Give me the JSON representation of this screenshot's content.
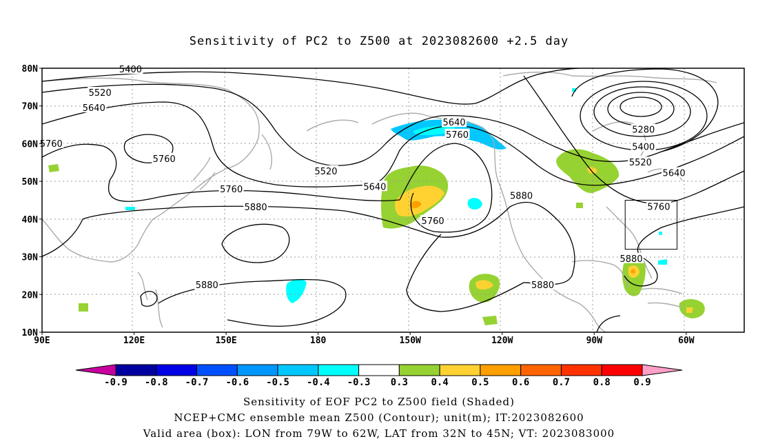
{
  "title": "Sensitivity of PC2 to Z500 at 2023082600 +2.5 day",
  "axes": {
    "lat_labels": [
      "80N",
      "70N",
      "60N",
      "50N",
      "40N",
      "30N",
      "20N",
      "10N"
    ],
    "lon_labels": [
      "90E",
      "120E",
      "150E",
      "180",
      "150W",
      "120W",
      "90W",
      "60W"
    ]
  },
  "contour_labels": [
    {
      "text": "5400",
      "lon": 119,
      "lat": 79.8
    },
    {
      "text": "5520",
      "lon": 109,
      "lat": 73.6
    },
    {
      "text": "5640",
      "lon": 107,
      "lat": 69.6
    },
    {
      "text": "5760",
      "lon": 93,
      "lat": 60.1
    },
    {
      "text": "5760",
      "lon": 130,
      "lat": 56.1
    },
    {
      "text": "5520",
      "lon": 183,
      "lat": 52.8
    },
    {
      "text": "5640",
      "lon": 199,
      "lat": 48.7
    },
    {
      "text": "5760",
      "lon": 152,
      "lat": 48.0
    },
    {
      "text": "5880",
      "lon": 160,
      "lat": 43.3
    },
    {
      "text": "5880",
      "lon": 144,
      "lat": 22.6
    },
    {
      "text": "5640",
      "lon": 225,
      "lat": 65.7
    },
    {
      "text": "5760",
      "lon": 226,
      "lat": 62.5
    },
    {
      "text": "5760",
      "lon": 218,
      "lat": 39.6
    },
    {
      "text": "5880",
      "lon": 247,
      "lat": 46.3
    },
    {
      "text": "5880",
      "lon": 254,
      "lat": 22.6
    },
    {
      "text": "5280",
      "lon": 287,
      "lat": 63.8
    },
    {
      "text": "5400",
      "lon": 287,
      "lat": 59.3
    },
    {
      "text": "5520",
      "lon": 286,
      "lat": 55.1
    },
    {
      "text": "5640",
      "lon": 297,
      "lat": 52.3
    },
    {
      "text": "5760",
      "lon": 292,
      "lat": 43.4
    },
    {
      "text": "5880",
      "lon": 283,
      "lat": 29.6
    }
  ],
  "colorbar": {
    "labels": [
      "-0.9",
      "-0.8",
      "-0.7",
      "-0.6",
      "-0.5",
      "-0.4",
      "-0.3",
      "0.3",
      "0.4",
      "0.5",
      "0.6",
      "0.7",
      "0.8",
      "0.9"
    ],
    "colors": [
      "#c800a0",
      "#0000a0",
      "#0000e6",
      "#0050ff",
      "#0096ff",
      "#00c8ff",
      "#00ffff",
      "#ffffff",
      "#96d232",
      "#ffd232",
      "#ffa000",
      "#ff6400",
      "#ff3200",
      "#ff0000",
      "#ffa0c8"
    ]
  },
  "valid_box": {
    "lon_min": 281,
    "lon_max": 298,
    "lat_min": 32,
    "lat_max": 45
  },
  "captions": [
    "Sensitivity of EOF PC2 to Z500 field (Shaded)",
    "NCEP+CMC ensemble mean Z500 (Contour); unit(m); IT:2023082600",
    "Valid area (box): LON from 79W to 62W, LAT from 32N to 45N; VT: 2023083000"
  ]
}
